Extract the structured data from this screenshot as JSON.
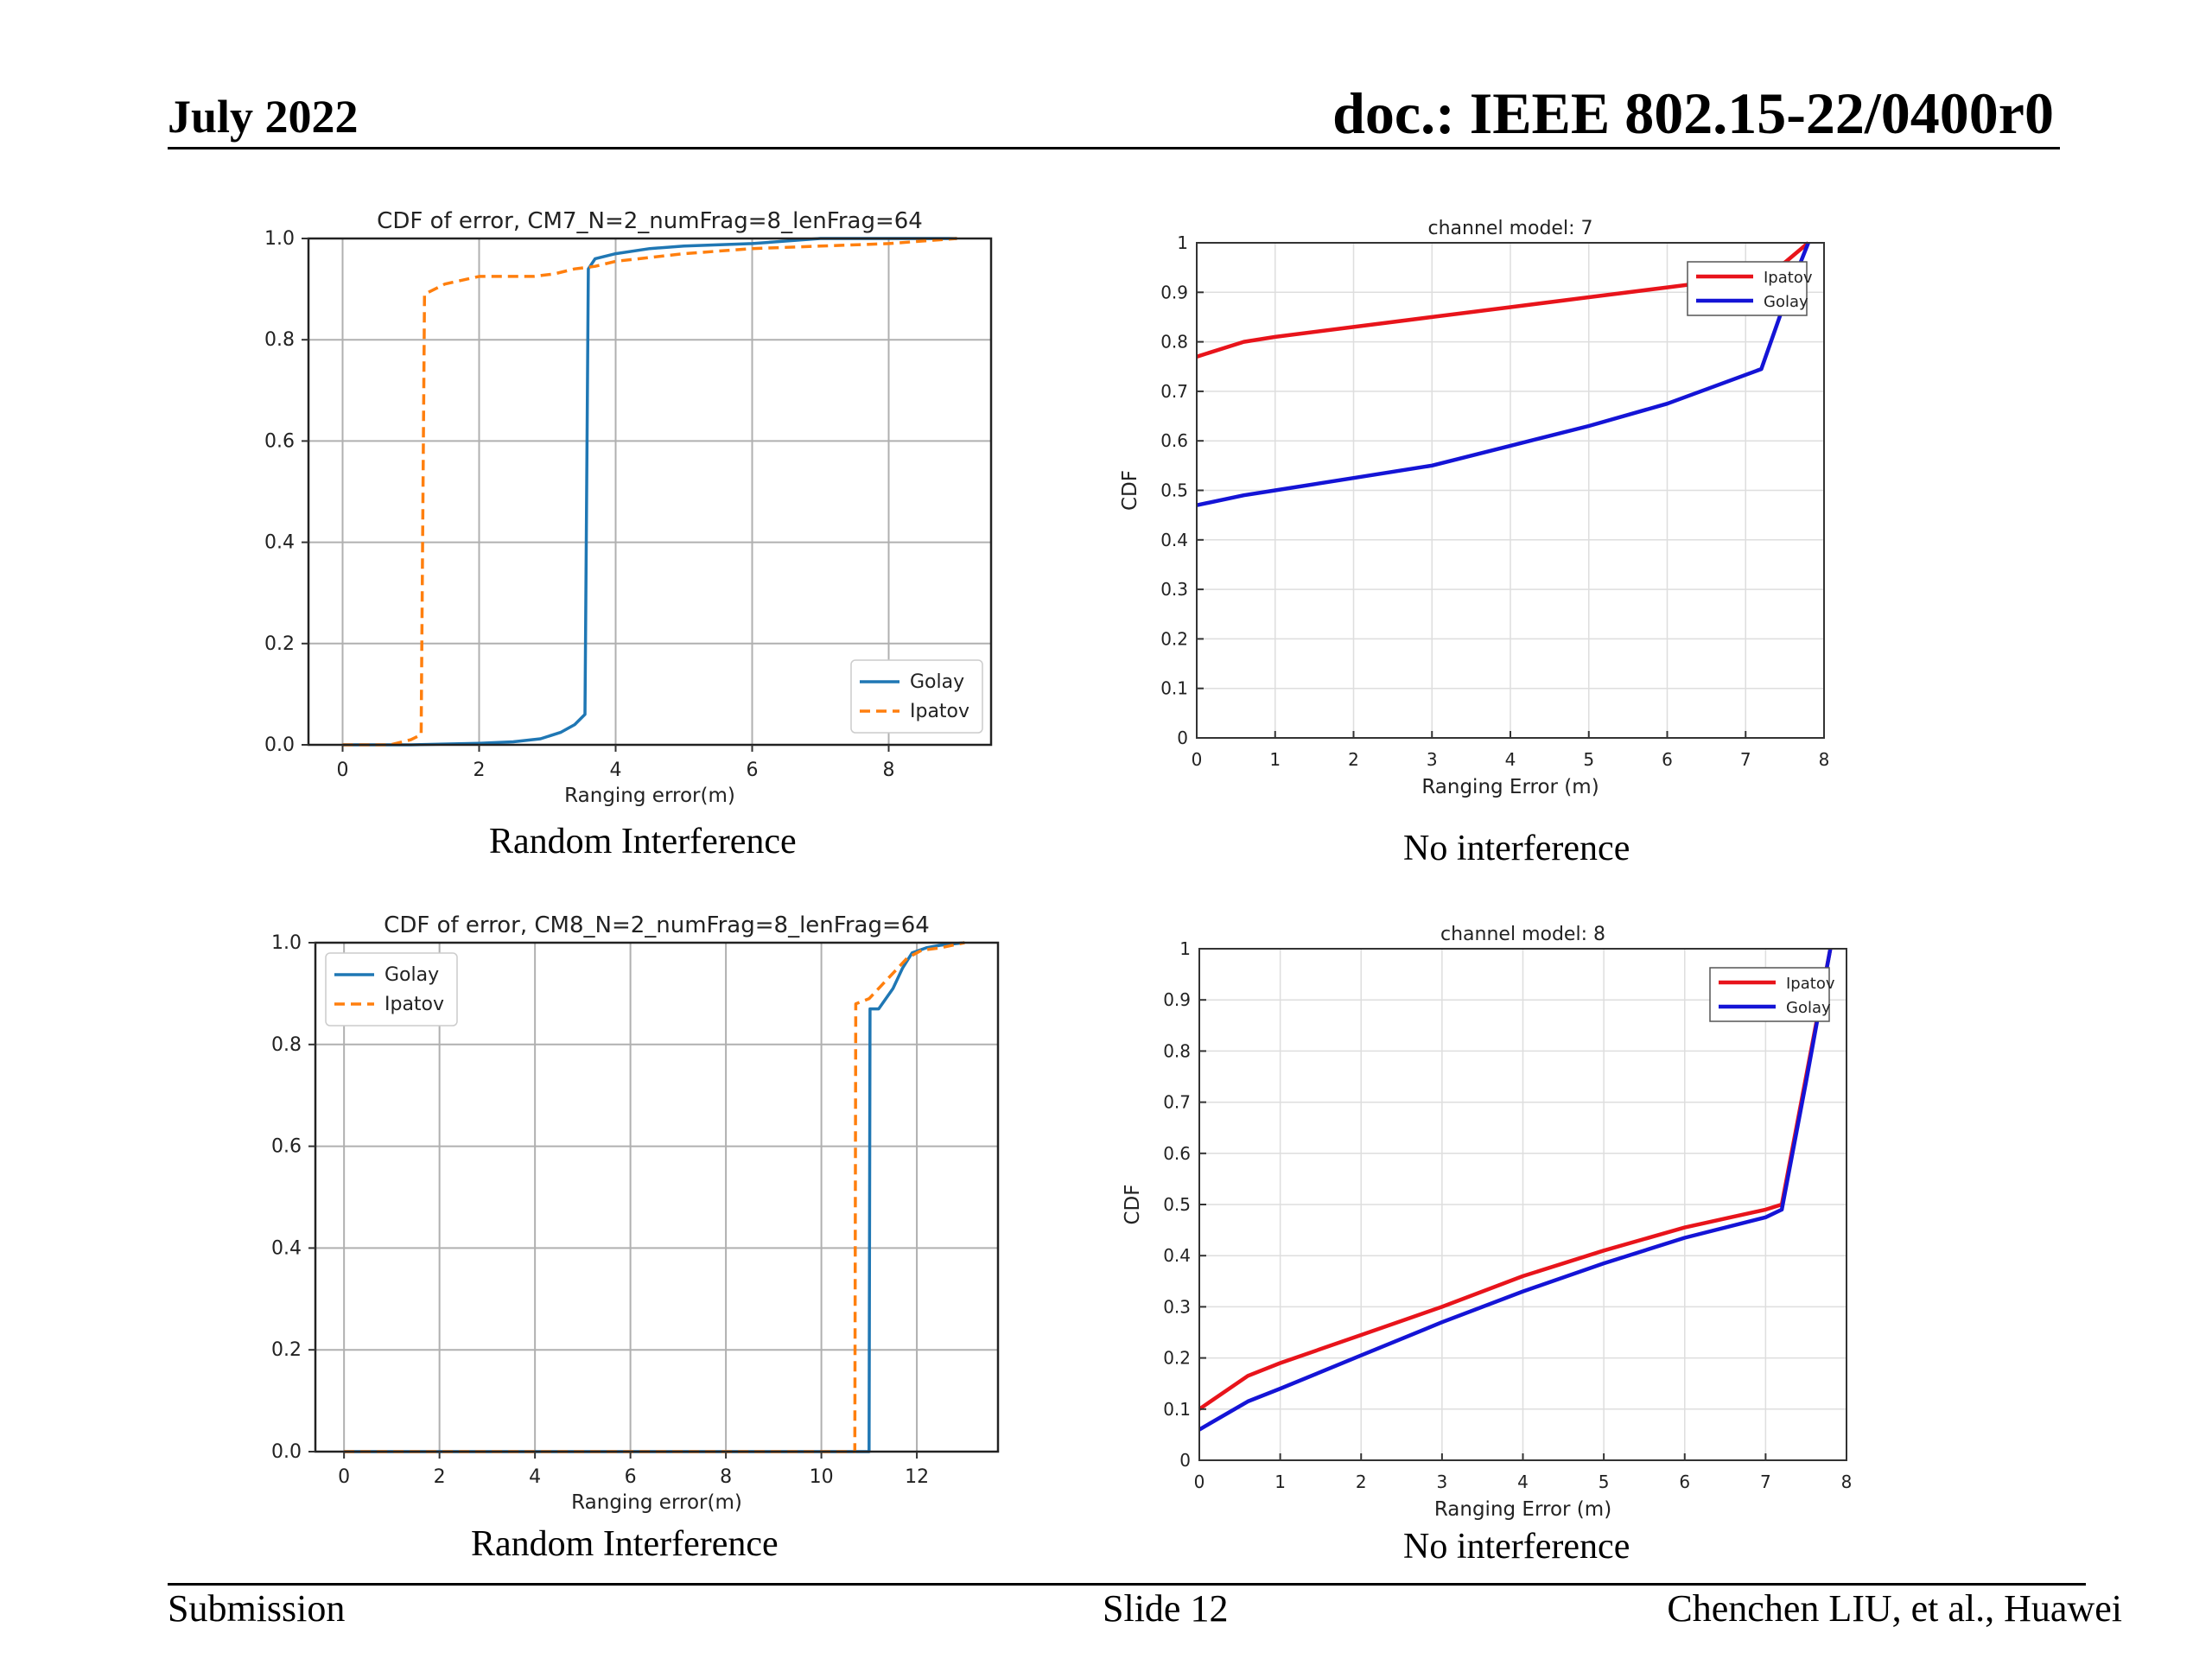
{
  "header": {
    "date": "July 2022",
    "doc": "doc.: IEEE 802.15-22/0400r0"
  },
  "footer": {
    "left": "Submission",
    "center": "Slide 12",
    "right": "Chenchen LIU, et al., Huawei"
  },
  "captions": {
    "top_left": "Random Interference",
    "top_right": "No interference",
    "bottom_left": "Random Interference",
    "bottom_right": "No interference"
  },
  "colors": {
    "golay_py": "#1f77b4",
    "ipatov_py": "#ff7f0e",
    "red": "#e8141b",
    "blue": "#1414d6"
  },
  "chart_data": [
    {
      "id": "tl",
      "type": "line",
      "style": "matplotlib",
      "title": "CDF of error, CM7_N=2_numFrag=8_lenFrag=64",
      "xlabel": "Ranging error(m)",
      "ylabel": "",
      "xlim": [
        -0.5,
        9.5
      ],
      "ylim": [
        0,
        1
      ],
      "xticks": [
        0,
        2,
        4,
        6,
        8
      ],
      "xtick_labels": [
        "0",
        "2",
        "4",
        "6",
        "8"
      ],
      "yticks": [
        0,
        0.2,
        0.4,
        0.6,
        0.8,
        1.0
      ],
      "ytick_labels": [
        "0.0",
        "0.2",
        "0.4",
        "0.6",
        "0.8",
        "1.0"
      ],
      "grid": true,
      "legend": {
        "position": "bottom-right"
      },
      "series": [
        {
          "name": "Golay",
          "color": "#1f77b4",
          "dash": false,
          "x": [
            0,
            1.0,
            2.0,
            2.5,
            2.9,
            3.2,
            3.4,
            3.55,
            3.6,
            3.7,
            4.0,
            4.5,
            5.0,
            6.0,
            7.0,
            8.0,
            9.0
          ],
          "y": [
            0,
            0,
            0.003,
            0.006,
            0.012,
            0.025,
            0.04,
            0.06,
            0.94,
            0.96,
            0.97,
            0.98,
            0.985,
            0.99,
            1.0,
            1.0,
            1.0
          ]
        },
        {
          "name": "Ipatov",
          "color": "#ff7f0e",
          "dash": true,
          "x": [
            0,
            0.7,
            1.0,
            1.15,
            1.2,
            1.5,
            2.0,
            2.8,
            3.1,
            3.4,
            3.7,
            4.0,
            5.0,
            6.0,
            7.0,
            8.0,
            9.0
          ],
          "y": [
            0,
            0,
            0.01,
            0.02,
            0.89,
            0.91,
            0.925,
            0.925,
            0.93,
            0.94,
            0.945,
            0.955,
            0.97,
            0.98,
            0.985,
            0.99,
            1.0
          ]
        }
      ]
    },
    {
      "id": "tr",
      "type": "line",
      "style": "matlab",
      "title": "channel model: 7",
      "xlabel": "Ranging Error (m)",
      "ylabel": "CDF",
      "xlim": [
        0,
        8
      ],
      "ylim": [
        0,
        1
      ],
      "xticks": [
        0,
        1,
        2,
        3,
        4,
        5,
        6,
        7,
        8
      ],
      "xtick_labels": [
        "0",
        "1",
        "2",
        "3",
        "4",
        "5",
        "6",
        "7",
        "8"
      ],
      "yticks": [
        0,
        0.1,
        0.2,
        0.3,
        0.4,
        0.5,
        0.6,
        0.7,
        0.8,
        0.9,
        1
      ],
      "ytick_labels": [
        "0",
        "0.1",
        "0.2",
        "0.3",
        "0.4",
        "0.5",
        "0.6",
        "0.7",
        "0.8",
        "0.9",
        "1"
      ],
      "grid": true,
      "legend": {
        "position": "top-right"
      },
      "series": [
        {
          "name": "Ipatov",
          "color": "#e8141b",
          "dash": false,
          "x": [
            0,
            0.6,
            1,
            2,
            3,
            4,
            5,
            6,
            7,
            7.5,
            7.8
          ],
          "y": [
            0.77,
            0.8,
            0.81,
            0.83,
            0.85,
            0.87,
            0.89,
            0.91,
            0.93,
            0.96,
            1.0
          ]
        },
        {
          "name": "Golay",
          "color": "#1414d6",
          "dash": false,
          "x": [
            0,
            0.6,
            1,
            2,
            3,
            4,
            5,
            6,
            6.6,
            7.2,
            7.5,
            7.8
          ],
          "y": [
            0.47,
            0.49,
            0.5,
            0.525,
            0.55,
            0.59,
            0.63,
            0.675,
            0.71,
            0.745,
            0.88,
            1.0
          ]
        }
      ]
    },
    {
      "id": "bl",
      "type": "line",
      "style": "matplotlib",
      "title": "CDF of error, CM8_N=2_numFrag=8_lenFrag=64",
      "xlabel": "Ranging error(m)",
      "ylabel": "",
      "xlim": [
        -0.6,
        13.7
      ],
      "ylim": [
        0,
        1
      ],
      "xticks": [
        0,
        2,
        4,
        6,
        8,
        10,
        12
      ],
      "xtick_labels": [
        "0",
        "2",
        "4",
        "6",
        "8",
        "10",
        "12"
      ],
      "yticks": [
        0,
        0.2,
        0.4,
        0.6,
        0.8,
        1.0
      ],
      "ytick_labels": [
        "0.0",
        "0.2",
        "0.4",
        "0.6",
        "0.8",
        "1.0"
      ],
      "grid": true,
      "legend": {
        "position": "top-left"
      },
      "series": [
        {
          "name": "Golay",
          "color": "#1f77b4",
          "dash": false,
          "x": [
            0,
            11.0,
            11.02,
            11.2,
            11.5,
            11.7,
            11.9,
            12.2,
            12.5,
            13.0
          ],
          "y": [
            0,
            0,
            0.87,
            0.87,
            0.91,
            0.95,
            0.98,
            0.99,
            0.995,
            1.0
          ]
        },
        {
          "name": "Ipatov",
          "color": "#ff7f0e",
          "dash": true,
          "x": [
            0,
            10.7,
            10.72,
            11.0,
            11.3,
            11.6,
            11.8,
            12.1,
            12.5,
            13.0
          ],
          "y": [
            0,
            0,
            0.88,
            0.89,
            0.92,
            0.95,
            0.97,
            0.985,
            0.99,
            1.0
          ]
        }
      ]
    },
    {
      "id": "br",
      "type": "line",
      "style": "matlab",
      "title": "channel model: 8",
      "xlabel": "Ranging Error (m)",
      "ylabel": "CDF",
      "xlim": [
        0,
        8
      ],
      "ylim": [
        0,
        1
      ],
      "xticks": [
        0,
        1,
        2,
        3,
        4,
        5,
        6,
        7,
        8
      ],
      "xtick_labels": [
        "0",
        "1",
        "2",
        "3",
        "4",
        "5",
        "6",
        "7",
        "8"
      ],
      "yticks": [
        0,
        0.1,
        0.2,
        0.3,
        0.4,
        0.5,
        0.6,
        0.7,
        0.8,
        0.9,
        1
      ],
      "ytick_labels": [
        "0",
        "0.1",
        "0.2",
        "0.3",
        "0.4",
        "0.5",
        "0.6",
        "0.7",
        "0.8",
        "0.9",
        "1"
      ],
      "grid": true,
      "legend": {
        "position": "top-right"
      },
      "series": [
        {
          "name": "Ipatov",
          "color": "#e8141b",
          "dash": false,
          "x": [
            0,
            0.6,
            1,
            2,
            3,
            4,
            5,
            6,
            7,
            7.2,
            7.5,
            7.8
          ],
          "y": [
            0.1,
            0.165,
            0.19,
            0.245,
            0.3,
            0.36,
            0.41,
            0.455,
            0.49,
            0.5,
            0.75,
            1.0
          ]
        },
        {
          "name": "Golay",
          "color": "#1414d6",
          "dash": false,
          "x": [
            0,
            0.6,
            1,
            2,
            3,
            4,
            5,
            6,
            7,
            7.2,
            7.5,
            7.8
          ],
          "y": [
            0.06,
            0.115,
            0.14,
            0.205,
            0.27,
            0.33,
            0.385,
            0.435,
            0.475,
            0.49,
            0.74,
            1.0
          ]
        }
      ]
    }
  ]
}
